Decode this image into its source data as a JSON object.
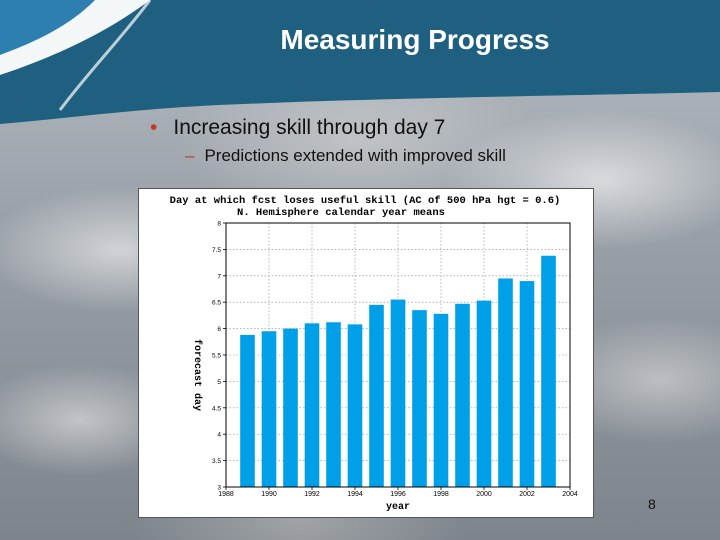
{
  "slide": {
    "title": "Measuring Progress",
    "bullet": "Increasing skill through day 7",
    "sub_bullet": "Predictions extended with improved skill",
    "page_number": "8",
    "colors": {
      "banner": "#1f5f7f",
      "bullet_marker": "#c0392b",
      "bar_fill": "#00a0e8",
      "background": "#9aa1a8"
    }
  },
  "chart_data": {
    "type": "bar",
    "title": "Day at which fcst loses useful skill (AC of 500 hPa hgt = 0.6)",
    "subtitle": "N. Hemisphere calendar year means",
    "xlabel": "year",
    "ylabel": "forecast day",
    "x": [
      1989,
      1990,
      1991,
      1992,
      1993,
      1994,
      1995,
      1996,
      1997,
      1998,
      1999,
      2000,
      2001,
      2002,
      2003
    ],
    "values": [
      5.88,
      5.95,
      6.0,
      6.1,
      6.12,
      6.08,
      6.45,
      6.55,
      6.35,
      6.28,
      6.47,
      6.53,
      6.95,
      6.9,
      7.38
    ],
    "xlim": [
      1988,
      2004
    ],
    "xticks": [
      "1988",
      "1990",
      "1992",
      "1994",
      "1996",
      "1998",
      "2000",
      "2002",
      "2004"
    ],
    "ylim": [
      3,
      8
    ],
    "yticks": [
      "3",
      "3.5",
      "4",
      "4.5",
      "5",
      "5.5",
      "6",
      "6.5",
      "7",
      "7.5",
      "8"
    ],
    "grid": true
  }
}
